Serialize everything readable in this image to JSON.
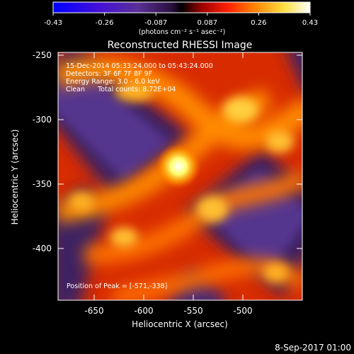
{
  "colorbar": {
    "tick_labels": [
      "-0.43",
      "-0.26",
      "-0.087",
      "0.087",
      "0.26",
      "0.43"
    ],
    "units": "(photons cm⁻² s⁻¹ asec⁻²)",
    "range": [
      -0.43,
      0.43
    ]
  },
  "plot": {
    "title": "Reconstructed RHESSI Image",
    "info_lines": [
      "15-Dec-2014 05:33:24.000 to 05:43:24.000",
      "Detectors: 3F 6F 7F 8F 9F",
      "Energy Range: 3.0 - 6.0 keV",
      "Clean      Total counts: 8.72E+04"
    ],
    "peak_text": "Position of Peak = [-571,-338]",
    "xlabel": "Heliocentric X (arcsec)",
    "ylabel": "Heliocentric Y (arcsec)",
    "x_ticks": [
      "-650",
      "-600",
      "-550",
      "-500"
    ],
    "y_ticks": [
      "-250",
      "-300",
      "-350",
      "-400"
    ]
  },
  "footer": {
    "timestamp": "8-Sep-2017 01:00"
  },
  "colors": {
    "background": "#000000",
    "text": "#ffffff"
  },
  "image": {
    "colormap": "blue-purple-black-red-orange-yellow-white",
    "pattern": "diagonal alternating bright/dark bands with bright peak near center"
  }
}
